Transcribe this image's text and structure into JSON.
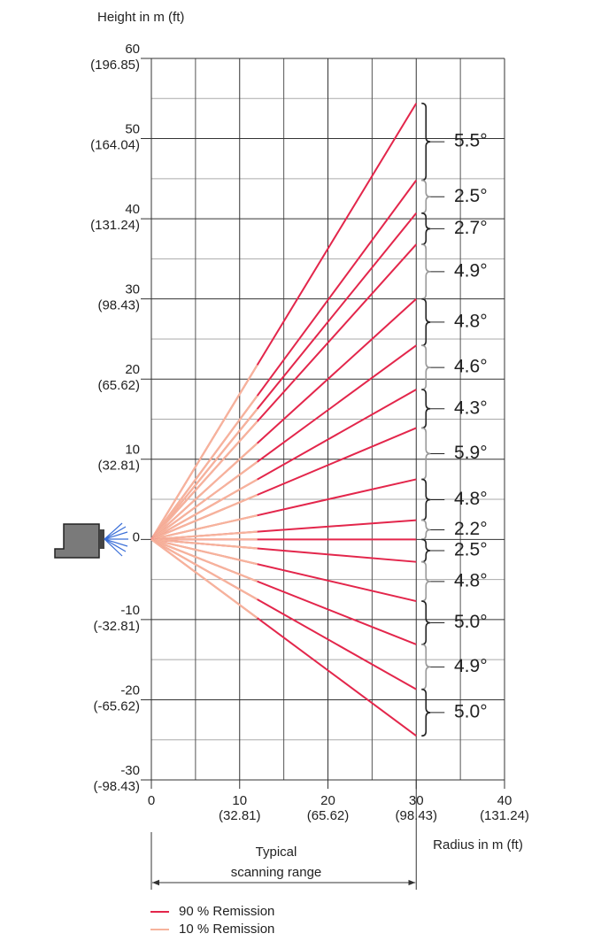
{
  "chart_data": {
    "type": "line",
    "y_title": "Height in m (ft)",
    "x_title": "Radius in m (ft)",
    "xlim": [
      0,
      40
    ],
    "ylim": [
      -30,
      60
    ],
    "xticks": [
      0,
      10,
      20,
      30,
      40
    ],
    "xticks_ft": [
      null,
      "(32.81)",
      "(65.62)",
      "(98.43)",
      "(131.24)"
    ],
    "yticks": [
      -30,
      -20,
      -10,
      0,
      10,
      20,
      30,
      40,
      50,
      60
    ],
    "yticks_ft": [
      "(-98.43)",
      "(-65.62)",
      "(-32.81)",
      null,
      "(32.81)",
      "(65.62)",
      "(98.43)",
      "(131.24)",
      "(164.04)",
      "(196.85)"
    ],
    "minor_xticks": [
      5,
      15,
      25,
      35
    ],
    "minor_yticks": [
      -25,
      -15,
      -5,
      5,
      15,
      25,
      35,
      45,
      55
    ],
    "grid": true,
    "values": [
      54.4,
      44.8,
      40.7,
      36.8,
      30.0,
      24.2,
      18.7,
      13.9,
      7.5,
      2.4,
      0,
      -2.8,
      -7.7,
      -13.1,
      -18.7,
      -24.5
    ],
    "angle_labels": [
      "5.5°",
      "2.5°",
      "2.7°",
      "4.9°",
      "4.8°",
      "4.6°",
      "4.3°",
      "5.9°",
      "4.8°",
      "2.2°",
      "2.5°",
      "4.8°",
      "5.0°",
      "4.9°",
      "5.0°"
    ],
    "series": [
      {
        "name": "90 % Remission",
        "color": "#e3264b",
        "range": 30
      },
      {
        "name": "10 % Remission",
        "color": "#f6b39c",
        "range": 12
      }
    ],
    "range_label": [
      "Typical",
      "scanning range"
    ]
  }
}
